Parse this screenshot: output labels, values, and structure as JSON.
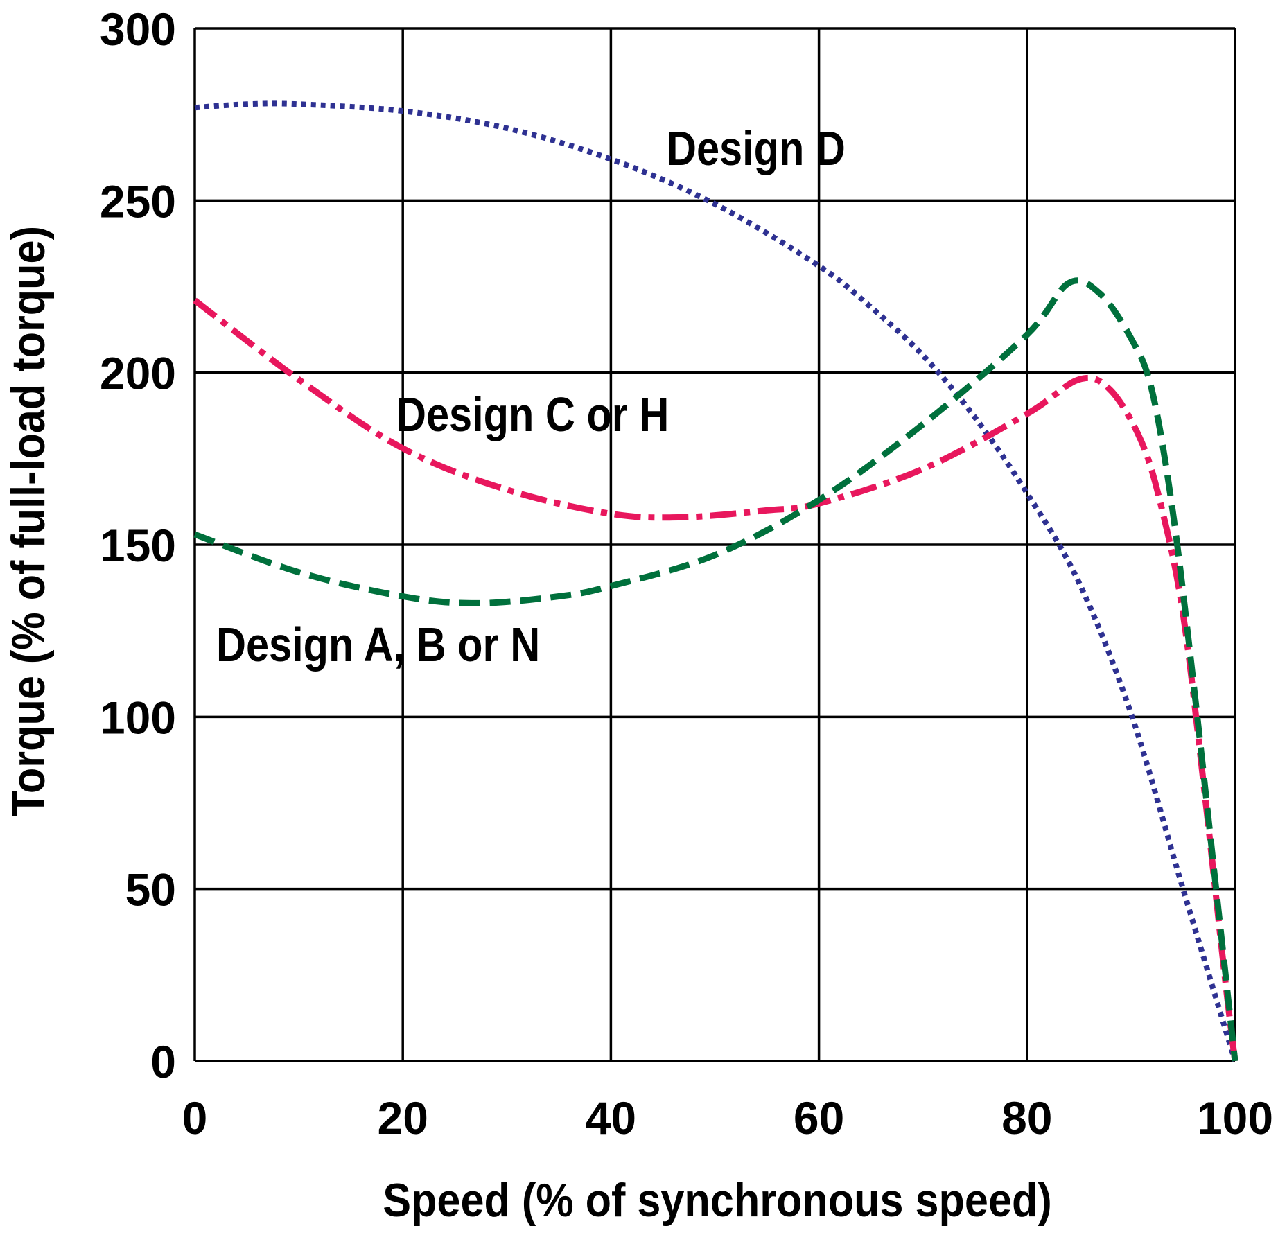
{
  "chart_data": {
    "type": "line",
    "title": "",
    "xlabel": "Speed (% of synchronous speed)",
    "ylabel": "Torque (% of full-load torque)",
    "xlim": [
      0,
      100
    ],
    "ylim": [
      0,
      300
    ],
    "xticks": [
      "0",
      "20",
      "40",
      "60",
      "80",
      "100"
    ],
    "yticks": [
      "0",
      "50",
      "100",
      "150",
      "200",
      "250",
      "300"
    ],
    "grid": true,
    "series": [
      {
        "name": "Design D",
        "color": "#2e3192",
        "style": "dotted",
        "x": [
          0,
          5,
          10,
          20,
          30,
          40,
          50,
          60,
          65,
          70,
          75,
          80,
          85,
          90,
          95,
          100
        ],
        "y": [
          277,
          278,
          278,
          276,
          271,
          262,
          249,
          231,
          219,
          205,
          187,
          165,
          139,
          101,
          50,
          0
        ]
      },
      {
        "name": "Design C or H",
        "color": "#e8175d",
        "style": "dash-dot",
        "x": [
          0,
          10,
          20,
          30,
          40,
          47,
          55,
          60,
          70,
          80,
          85,
          88,
          91,
          93,
          95,
          97,
          99,
          100
        ],
        "y": [
          221,
          198,
          178,
          166,
          159,
          158,
          160,
          162,
          172,
          188,
          198,
          195,
          180,
          160,
          130,
          80,
          25,
          0
        ]
      },
      {
        "name": "Design A, B or N",
        "color": "#00703c",
        "style": "dashed",
        "x": [
          0,
          10,
          20,
          27,
          35,
          40,
          50,
          60,
          70,
          80,
          84,
          87,
          90,
          92,
          94,
          96,
          98,
          100
        ],
        "y": [
          153,
          142,
          135,
          133,
          135,
          138,
          147,
          163,
          185,
          211,
          226,
          223,
          210,
          195,
          160,
          110,
          55,
          0
        ]
      }
    ]
  }
}
